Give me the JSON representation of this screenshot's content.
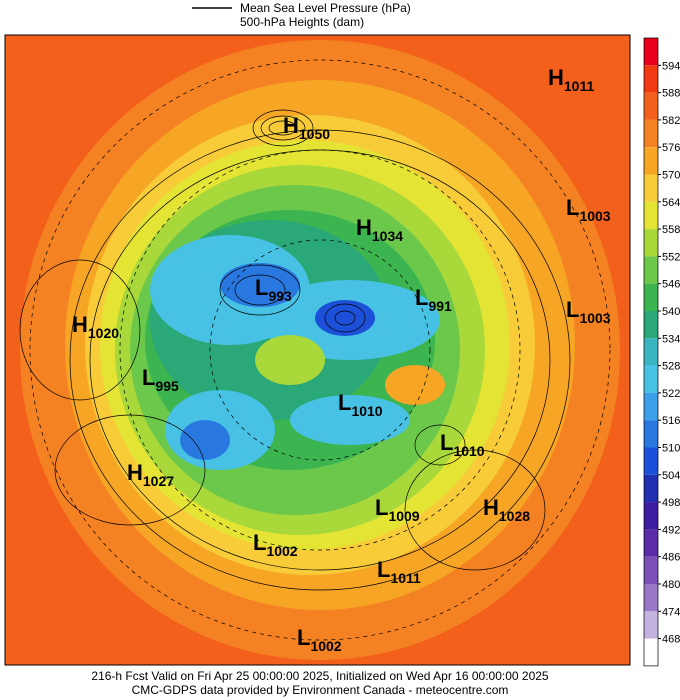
{
  "header": {
    "legend": [
      "Mean Sea Level Pressure (hPa)",
      "500-hPa Heights (dam)"
    ]
  },
  "map": {
    "centers": [
      {
        "type": "H",
        "value": 1011
      },
      {
        "type": "H",
        "value": 1050
      },
      {
        "type": "H",
        "value": 1034
      },
      {
        "type": "L",
        "value": 1003
      },
      {
        "type": "L",
        "value": 993
      },
      {
        "type": "L",
        "value": 991
      },
      {
        "type": "H",
        "value": 1020
      },
      {
        "type": "L",
        "value": 1003
      },
      {
        "type": "L",
        "value": 995
      },
      {
        "type": "L",
        "value": 1010
      },
      {
        "type": "L",
        "value": 1010
      },
      {
        "type": "H",
        "value": 1027
      },
      {
        "type": "L",
        "value": 1009
      },
      {
        "type": "H",
        "value": 1028
      },
      {
        "type": "L",
        "value": 1002
      },
      {
        "type": "L",
        "value": 1011
      },
      {
        "type": "L",
        "value": 1002
      }
    ]
  },
  "colorbar": {
    "labels": [
      594,
      588,
      582,
      576,
      570,
      564,
      558,
      552,
      546,
      540,
      534,
      528,
      522,
      516,
      510,
      504,
      498,
      492,
      486,
      480,
      474,
      468
    ],
    "colors": [
      "#e8001c",
      "#f23a12",
      "#f2601c",
      "#f58222",
      "#f7a524",
      "#f7cc38",
      "#e4e434",
      "#a8d83a",
      "#6cc84a",
      "#3cb450",
      "#2aa878",
      "#3ab4c0",
      "#48c2e4",
      "#3aa0e8",
      "#2878e0",
      "#1c50d8",
      "#2030b0",
      "#3c1ca0",
      "#5a2ca8",
      "#7a50b8",
      "#9a78c8",
      "#c2b2e0",
      "#ffffff"
    ]
  },
  "footer": {
    "lines": [
      "216-h Fcst Valid on Fri Apr 25 00:00:00 2025, Initialized on Wed Apr 16 00:00:00 2025",
      "CMC-GDPS data provided by Environment Canada - meteocentre.com"
    ]
  }
}
